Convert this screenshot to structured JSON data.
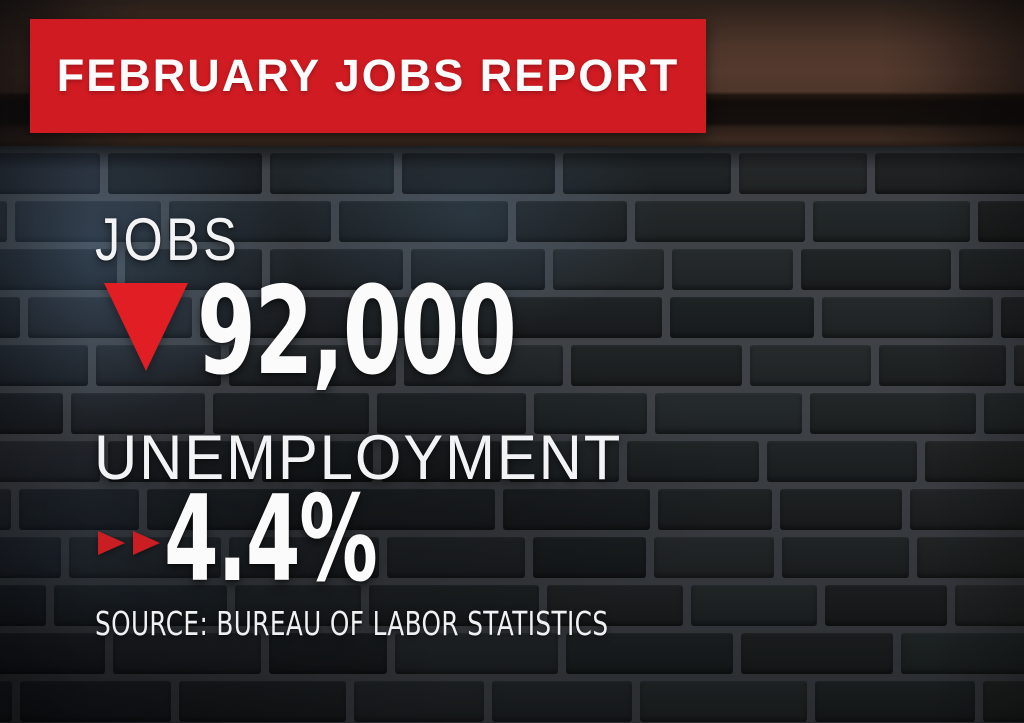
{
  "banner": {
    "title": "FEBRUARY JOBS REPORT"
  },
  "jobs": {
    "label": "JOBS",
    "value": "92,000",
    "trend": "down"
  },
  "unemployment": {
    "label": "UNEMPLOYMENT",
    "value": "4.4%",
    "trend": "steady-right"
  },
  "source": {
    "text": "SOURCE: BUREAU OF LABOR STATISTICS"
  },
  "icons": {
    "jobs_trend": "triangle-down-icon",
    "unemployment_trend": "double-arrow-right-icon"
  },
  "colors": {
    "banner_red": "#d01b22",
    "triangle_red": "#e11e24",
    "arrow_red": "#cb1e22",
    "text_white": "#f6f6f6"
  }
}
